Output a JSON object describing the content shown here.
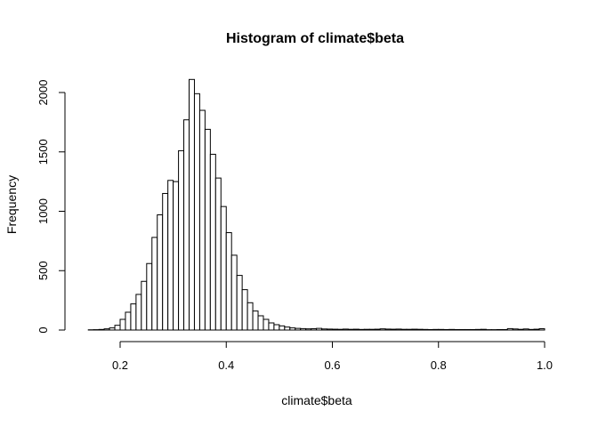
{
  "chart_data": {
    "type": "bar",
    "title": "Histogram of climate$beta",
    "xlabel": "climate$beta",
    "ylabel": "Frequency",
    "xlim": [
      0.14,
      1.0
    ],
    "ylim": [
      0,
      2100
    ],
    "x_ticks": [
      0.2,
      0.4,
      0.6,
      0.8,
      1.0
    ],
    "x_tick_labels": [
      "0.2",
      "0.4",
      "0.6",
      "0.8",
      "1.0"
    ],
    "y_ticks": [
      0,
      500,
      1000,
      1500,
      2000
    ],
    "y_tick_labels": [
      "0",
      "500",
      "1000",
      "1500",
      "2000"
    ],
    "bin_width": 0.01,
    "bin_start": 0.14,
    "values": [
      2,
      3,
      5,
      10,
      18,
      40,
      90,
      150,
      220,
      300,
      410,
      560,
      780,
      970,
      1150,
      1260,
      1250,
      1510,
      1770,
      2110,
      1990,
      1850,
      1690,
      1480,
      1280,
      1040,
      820,
      630,
      460,
      340,
      230,
      160,
      120,
      90,
      60,
      45,
      35,
      25,
      18,
      14,
      12,
      10,
      11,
      14,
      9,
      8,
      7,
      6,
      8,
      6,
      7,
      5,
      6,
      6,
      7,
      10,
      8,
      7,
      8,
      6,
      6,
      7,
      6,
      5,
      4,
      5,
      5,
      4,
      5,
      4,
      4,
      4,
      4,
      5,
      6,
      3,
      3,
      4,
      4,
      12,
      9,
      6,
      9,
      5,
      7,
      11
    ]
  }
}
